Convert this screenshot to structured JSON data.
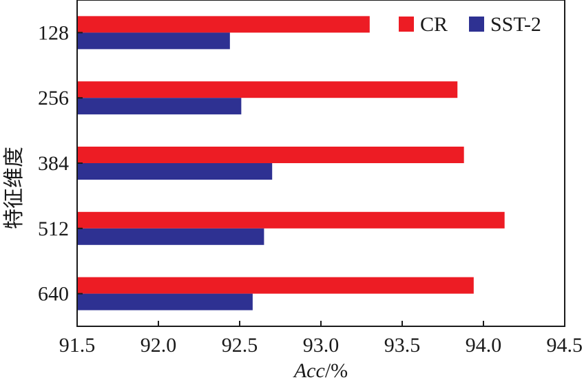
{
  "chart_data": {
    "type": "bar",
    "orientation": "horizontal",
    "categories": [
      "128",
      "256",
      "384",
      "512",
      "640"
    ],
    "series": [
      {
        "name": "CR",
        "color": "#ed1c24",
        "values": [
          93.3,
          93.84,
          93.88,
          94.13,
          93.94
        ]
      },
      {
        "name": "SST-2",
        "color": "#2e3192",
        "values": [
          92.44,
          92.51,
          92.7,
          92.65,
          92.58
        ]
      }
    ],
    "xlabel_main": "Acc",
    "xlabel_unit": "/%",
    "ylabel": "特征维度",
    "xlim": [
      91.5,
      94.5
    ],
    "xticks": [
      "91.5",
      "92.0",
      "92.5",
      "93.0",
      "93.5",
      "94.0",
      "94.5"
    ],
    "legend_position": "top-right",
    "grid": false
  }
}
